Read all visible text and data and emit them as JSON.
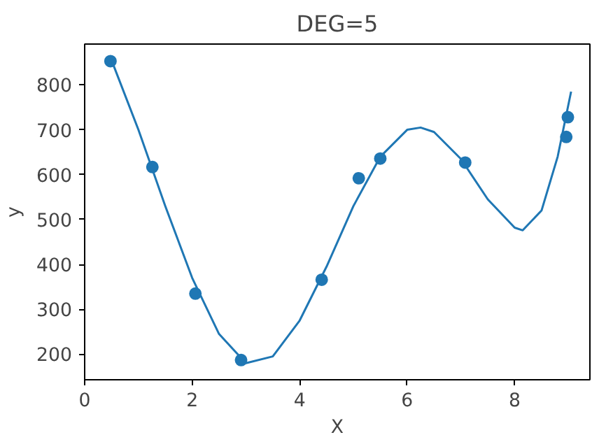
{
  "chart_data": {
    "type": "scatter",
    "title": "DEG=5",
    "xlabel": "X",
    "ylabel": "y",
    "xlim": [
      0,
      9.4
    ],
    "ylim": [
      143,
      891
    ],
    "xticks": [
      0,
      2,
      4,
      6,
      8
    ],
    "yticks": [
      200,
      300,
      400,
      500,
      600,
      700,
      800
    ],
    "grid": false,
    "marker": "circle",
    "series": [
      {
        "color": "#1f77b4",
        "x": [
          0.48,
          1.26,
          2.06,
          2.91,
          4.41,
          5.1,
          5.5,
          7.08,
          8.96,
          8.99
        ],
        "values": [
          853,
          617,
          335,
          187,
          366,
          592,
          636,
          627,
          684,
          728
        ]
      },
      {
        "type": "line",
        "color": "#1f77b4",
        "marker": "none",
        "x": [
          0.5,
          1.0,
          1.5,
          2.0,
          2.5,
          3.0,
          3.5,
          4.0,
          4.5,
          5.0,
          5.5,
          6.0,
          6.25,
          6.5,
          7.0,
          7.5,
          8.0,
          8.15,
          8.5,
          8.8,
          9.05
        ],
        "values": [
          855,
          700,
          530,
          370,
          245,
          180,
          195,
          275,
          395,
          530,
          640,
          700,
          705,
          695,
          635,
          545,
          482,
          476,
          520,
          640,
          785
        ]
      }
    ]
  }
}
